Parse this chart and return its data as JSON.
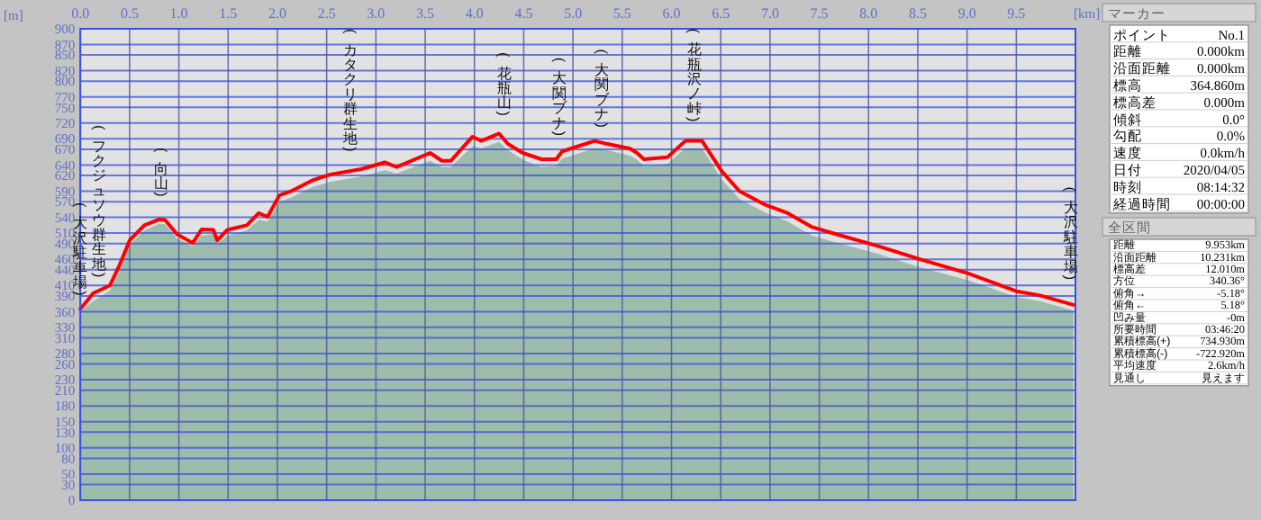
{
  "chart_data": [
    {
      "type": "line",
      "xlabel": "[km]",
      "ylabel": "[m]",
      "xlim": [
        0,
        10.1
      ],
      "ylim": [
        0,
        900
      ],
      "grid": true,
      "tick_labels": "xy",
      "xticks": [
        {
          "value": 0,
          "label": "0.0"
        },
        {
          "value": 0.5,
          "label": "0.5"
        },
        {
          "value": 1,
          "label": "1.0"
        },
        {
          "value": 1.5,
          "label": "1.5"
        },
        {
          "value": 2,
          "label": "2.0"
        },
        {
          "value": 2.5,
          "label": "2.5"
        },
        {
          "value": 3,
          "label": "3.0"
        },
        {
          "value": 3.5,
          "label": "3.5"
        },
        {
          "value": 4,
          "label": "4.0"
        },
        {
          "value": 4.5,
          "label": "4.5"
        },
        {
          "value": 5,
          "label": "5.0"
        },
        {
          "value": 5.5,
          "label": "5.5"
        },
        {
          "value": 6,
          "label": "6.0"
        },
        {
          "value": 6.5,
          "label": "6.5"
        },
        {
          "value": 7,
          "label": "7.0"
        },
        {
          "value": 7.5,
          "label": "7.5"
        },
        {
          "value": 8,
          "label": "8.0"
        },
        {
          "value": 8.5,
          "label": "8.5"
        },
        {
          "value": 9,
          "label": "9.0"
        },
        {
          "value": 9.5,
          "label": "9.5"
        }
      ],
      "yticks": [
        0,
        30,
        50,
        80,
        100,
        130,
        150,
        180,
        210,
        230,
        260,
        280,
        310,
        330,
        360,
        390,
        410,
        440,
        460,
        490,
        510,
        540,
        570,
        590,
        620,
        640,
        670,
        690,
        720,
        750,
        770,
        800,
        820,
        850,
        870,
        900
      ],
      "series": [
        {
          "type": "area",
          "color": "#9dbcab",
          "x": [
            0,
            0.13,
            0.3,
            0.4,
            0.5,
            0.65,
            0.8,
            0.86,
            0.98,
            1.14,
            1.23,
            1.35,
            1.39,
            1.49,
            1.69,
            1.81,
            1.9,
            2.02,
            2.14,
            2.36,
            2.54,
            2.85,
            3.09,
            3.21,
            3.55,
            3.67,
            3.76,
            3.98,
            4.07,
            4.25,
            4.34,
            4.49,
            4.68,
            4.83,
            4.89,
            5.22,
            5.35,
            5.58,
            5.65,
            5.72,
            5.96,
            6.14,
            6.31,
            6.51,
            6.69,
            6.94,
            7.18,
            7.42,
            7.67,
            8.1,
            8.52,
            9.01,
            9.5,
            9.74,
            10.08
          ],
          "values": [
            360,
            380,
            400,
            440,
            488,
            515,
            528,
            527,
            500,
            485,
            505,
            508,
            490,
            505,
            515,
            535,
            532,
            570,
            578,
            598,
            608,
            618,
            630,
            624,
            648,
            636,
            636,
            676,
            672,
            684,
            668,
            650,
            636,
            638,
            652,
            672,
            668,
            658,
            650,
            638,
            642,
            672,
            672,
            612,
            575,
            550,
            532,
            506,
            492,
            470,
            445,
            420,
            388,
            380,
            362
          ]
        },
        {
          "type": "line",
          "color": "#ff0000",
          "x": [
            0,
            0.13,
            0.3,
            0.4,
            0.5,
            0.65,
            0.8,
            0.86,
            0.98,
            1.14,
            1.23,
            1.35,
            1.39,
            1.49,
            1.69,
            1.81,
            1.9,
            2.02,
            2.14,
            2.36,
            2.54,
            2.85,
            3.09,
            3.21,
            3.55,
            3.67,
            3.76,
            3.98,
            4.07,
            4.25,
            4.34,
            4.49,
            4.68,
            4.83,
            4.89,
            5.22,
            5.35,
            5.58,
            5.65,
            5.72,
            5.96,
            6.14,
            6.31,
            6.51,
            6.69,
            6.94,
            7.18,
            7.42,
            7.67,
            8.1,
            8.52,
            9.01,
            9.5,
            9.74,
            10.08
          ],
          "values": [
            365,
            395,
            410,
            450,
            496,
            525,
            536,
            535,
            508,
            491,
            517,
            516,
            496,
            516,
            525,
            548,
            541,
            582,
            590,
            611,
            622,
            632,
            645,
            636,
            663,
            648,
            648,
            694,
            686,
            700,
            680,
            663,
            651,
            651,
            666,
            686,
            680,
            671,
            663,
            651,
            655,
            686,
            686,
            628,
            590,
            565,
            548,
            522,
            508,
            485,
            460,
            433,
            399,
            391,
            373
          ]
        }
      ],
      "annotations": [
        {
          "text": "(大沢駐車場)",
          "x": 0,
          "y": 365
        },
        {
          "text": "(フクジュソウ群生地)",
          "x": 0.19,
          "y": 400
        },
        {
          "text": "(向山)",
          "x": 0.82,
          "y": 554
        },
        {
          "text": "(カタクリ群生地)",
          "x": 2.74,
          "y": 640
        },
        {
          "text": "(花瓶山)",
          "x": 4.3,
          "y": 708
        },
        {
          "text": "(大関ブナ)",
          "x": 4.86,
          "y": 670
        },
        {
          "text": "(大関ブナ)",
          "x": 5.29,
          "y": 686
        },
        {
          "text": "(花瓶沢ノ峠)",
          "x": 6.23,
          "y": 697
        },
        {
          "text": "(大沢駐車場)",
          "x": 10.05,
          "y": 395
        }
      ]
    },
    {
      "type": "other",
      "title": "マーカー",
      "categories": [
        "ポイント",
        "距離",
        "沿面距離",
        "標高",
        "標高差",
        "傾斜",
        "勾配",
        "速度",
        "日付",
        "時刻",
        "経過時間"
      ],
      "value_labels": [
        "No.1",
        "0.000km",
        "0.000km",
        "364.860m",
        "0.000m",
        "0.0°",
        "0.0%",
        "0.0km/h",
        "2020/04/05",
        "08:14:32",
        "00:00:00"
      ]
    },
    {
      "type": "other",
      "title": "全区間",
      "categories": [
        "距離",
        "沿面距離",
        "標高差",
        "方位",
        "俯角→",
        "俯角←",
        "凹み量",
        "所要時間",
        "累積標高(+)",
        "累積標高(-)",
        "平均速度",
        "見通し"
      ],
      "value_labels": [
        "9.953km",
        "10.231km",
        "12.010m",
        "340.36°",
        "-5.18°",
        "5.18°",
        "-0m",
        "03:46:20",
        "734.930m",
        "-722.920m",
        "2.6km/h",
        "見えます"
      ]
    }
  ]
}
